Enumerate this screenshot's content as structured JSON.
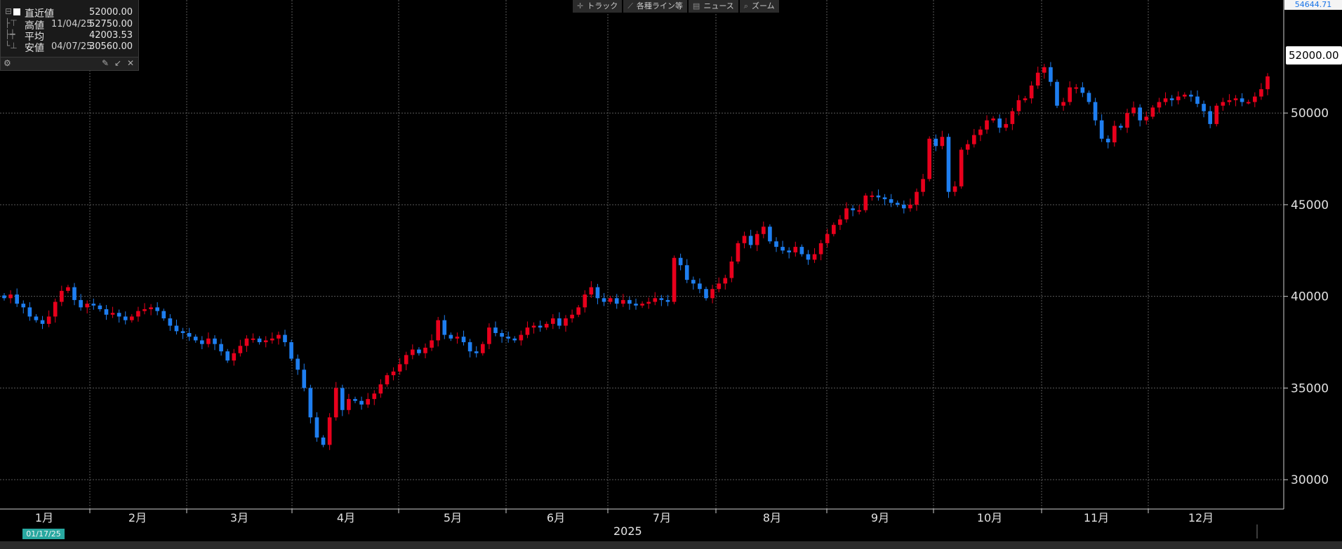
{
  "legend": {
    "last_label": "直近値",
    "last_value": "52000.00",
    "high_label": "高値",
    "high_date": "11/04/25",
    "high_value": "52750.00",
    "avg_label": "平均",
    "avg_value": "42003.53",
    "low_label": "安値",
    "low_date": "04/07/25",
    "low_value": "30560.00"
  },
  "toolbar": {
    "track": "トラック",
    "lines": "各種ライン等",
    "news": "ニュース",
    "zoom": "ズーム"
  },
  "axis": {
    "top_value": "54644.71",
    "last_price": "52000.00",
    "date_box": "01/17/25",
    "year": "2025"
  },
  "colors": {
    "up": "#e8001c",
    "down": "#1e7ef0",
    "grid": "#5a5a5a",
    "axis_text": "#e0e0e0"
  },
  "chart_data": {
    "type": "candlestick",
    "title": "",
    "x_labels": [
      "1月",
      "2月",
      "3月",
      "4月",
      "5月",
      "6月",
      "7月",
      "8月",
      "9月",
      "10月",
      "11月",
      "12月"
    ],
    "y_ticks": [
      30000,
      35000,
      40000,
      45000,
      50000
    ],
    "ylim": [
      28400,
      55400
    ],
    "grid": true,
    "approx_closes": [
      39900,
      40100,
      39600,
      39400,
      38900,
      38700,
      38500,
      38900,
      39700,
      40300,
      40500,
      39800,
      39400,
      39600,
      39500,
      39300,
      39000,
      39100,
      38900,
      38700,
      38900,
      39200,
      39300,
      39400,
      39200,
      38800,
      38400,
      38100,
      38000,
      37800,
      37600,
      37400,
      37700,
      37400,
      37000,
      36500,
      36900,
      37300,
      37700,
      37700,
      37500,
      37600,
      37700,
      37900,
      37500,
      36600,
      36000,
      35000,
      33400,
      32300,
      31900,
      33400,
      35000,
      33800,
      34400,
      34300,
      34100,
      34400,
      34700,
      35200,
      35700,
      35900,
      36300,
      36800,
      37100,
      36900,
      37200,
      37600,
      38700,
      37900,
      37700,
      37800,
      37500,
      37000,
      36900,
      37400,
      38300,
      38000,
      37800,
      37700,
      37600,
      37900,
      38300,
      38400,
      38300,
      38500,
      38800,
      38400,
      38800,
      39000,
      39400,
      40100,
      40500,
      39900,
      39700,
      39900,
      39600,
      39800,
      39600,
      39500,
      39600,
      39700,
      39900,
      39800,
      39700,
      42100,
      41700,
      40900,
      40700,
      40400,
      39900,
      40400,
      40700,
      41000,
      41900,
      42900,
      43300,
      42800,
      43400,
      43800,
      43000,
      42700,
      42500,
      42400,
      42700,
      42300,
      42000,
      42300,
      42900,
      43400,
      43900,
      44200,
      44800,
      44700,
      44700,
      45500,
      45500,
      45400,
      45300,
      45100,
      45000,
      44800,
      45000,
      45700,
      46400,
      48600,
      48200,
      48700,
      45700,
      46000,
      48000,
      48300,
      48800,
      49100,
      49600,
      49700,
      49200,
      49400,
      50100,
      50700,
      50800,
      51500,
      52200,
      52500,
      51700,
      50400,
      50600,
      51400,
      51400,
      51100,
      50600,
      49600,
      48600,
      48400,
      49300,
      49200,
      50000,
      50300,
      49600,
      49800,
      50300,
      50600,
      50800,
      50700,
      50900,
      51000,
      50900,
      50500,
      50100,
      49400,
      50400,
      50600,
      50700,
      50800,
      50600,
      50600,
      50900,
      51300,
      52000
    ]
  }
}
